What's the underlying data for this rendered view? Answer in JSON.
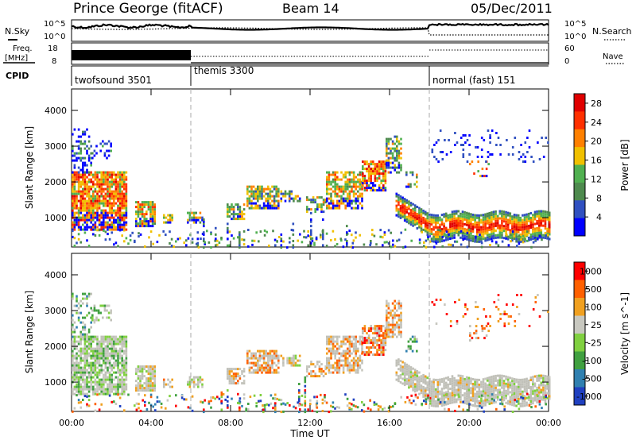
{
  "header": {
    "station": "Prince George (fitACF)",
    "beam": "Beam 14",
    "date": "05/Dec/2011"
  },
  "labels": {
    "nsky": "N.Sky",
    "nsearch": "N.Search",
    "freq_line1": "Freq.",
    "freq_line2": "[MHz]",
    "nave": "Nave",
    "cpid": "CPID",
    "noise_left_top": "10^5",
    "noise_left_bottom": "10^0",
    "noise_right_top": "10^5",
    "noise_right_bottom": "10^0",
    "freq_left_top": "18",
    "freq_left_bottom": "8",
    "nave_right_top": "60",
    "nave_right_bottom": "0"
  },
  "cpid_segments": [
    {
      "name": "twofsound 3501",
      "start_h": 0
    },
    {
      "name": "themis 3300",
      "start_h": 6
    },
    {
      "name": "normal (fast) 151",
      "start_h": 18
    }
  ],
  "colors": {
    "power_scale": [
      "#0000ff",
      "#3050c0",
      "#4e8a4e",
      "#50b050",
      "#f0c000",
      "#ff8000",
      "#ff3000",
      "#e00000"
    ],
    "velocity_scale": [
      "#2040c0",
      "#3080b0",
      "#40a040",
      "#80d040",
      "#c8c8c0",
      "#f0a020",
      "#ff6000",
      "#ff0000"
    ],
    "ground_scatter": "#c0c0b8"
  },
  "chart_data": [
    {
      "type": "heatmap",
      "title": "Power",
      "xlabel": "",
      "ylabel": "Slant Range [km]",
      "x_ticks": [
        "00:00",
        "04:00",
        "08:00",
        "12:00",
        "16:00",
        "20:00",
        "00:00"
      ],
      "y_ticks": [
        "1000",
        "2000",
        "3000",
        "4000"
      ],
      "xlim_h": [
        0,
        24
      ],
      "ylim_km": [
        180,
        4600
      ],
      "colorbar": {
        "label": "Power [dB]",
        "ticks": [
          "4",
          "8",
          "12",
          "16",
          "20",
          "24",
          "28"
        ],
        "range": [
          0,
          30
        ]
      },
      "mode_changes_h": [
        6,
        18
      ]
    },
    {
      "type": "heatmap",
      "title": "Velocity",
      "xlabel": "Time UT",
      "ylabel": "Slant Range [km]",
      "x_ticks": [
        "00:00",
        "04:00",
        "08:00",
        "12:00",
        "16:00",
        "20:00",
        "00:00"
      ],
      "y_ticks": [
        "1000",
        "2000",
        "3000",
        "4000"
      ],
      "xlim_h": [
        0,
        24
      ],
      "ylim_km": [
        180,
        4600
      ],
      "colorbar": {
        "label": "Velocity [m s^-1]",
        "ticks": [
          "1000",
          "500",
          "100",
          "25",
          "-25",
          "-100",
          "-500",
          "-1000"
        ]
      },
      "mode_changes_h": [
        6,
        18
      ]
    }
  ]
}
